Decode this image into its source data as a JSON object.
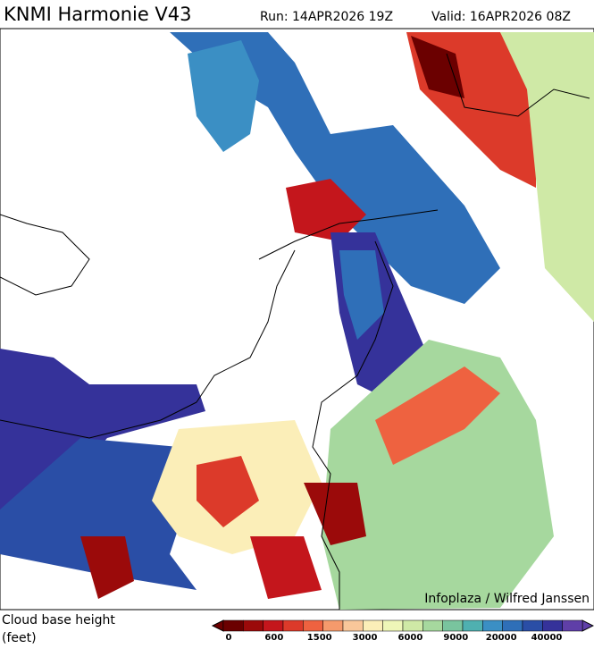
{
  "header": {
    "title": "KNMI Harmonie V43",
    "run": "Run: 14APR2026 19Z",
    "valid": "Valid: 16APR2026 08Z"
  },
  "credit": "Infoplaza / Wilfred Janssen",
  "legend": {
    "label_line1": "Cloud base height",
    "label_line2": "(feet)",
    "ticks": [
      0,
      600,
      1500,
      3000,
      6000,
      9000,
      20000,
      40000
    ],
    "colors": [
      "#6b0000",
      "#9b0a0a",
      "#c4161c",
      "#dc3a2a",
      "#ee6240",
      "#f59a6c",
      "#f9c79a",
      "#fbeeb8",
      "#eef6b8",
      "#cfe9a6",
      "#a6d89e",
      "#79c49e",
      "#4fb0b0",
      "#3b8fc4",
      "#2f6fb8",
      "#2a4ea6",
      "#35329a",
      "#5f3fa8"
    ]
  }
}
